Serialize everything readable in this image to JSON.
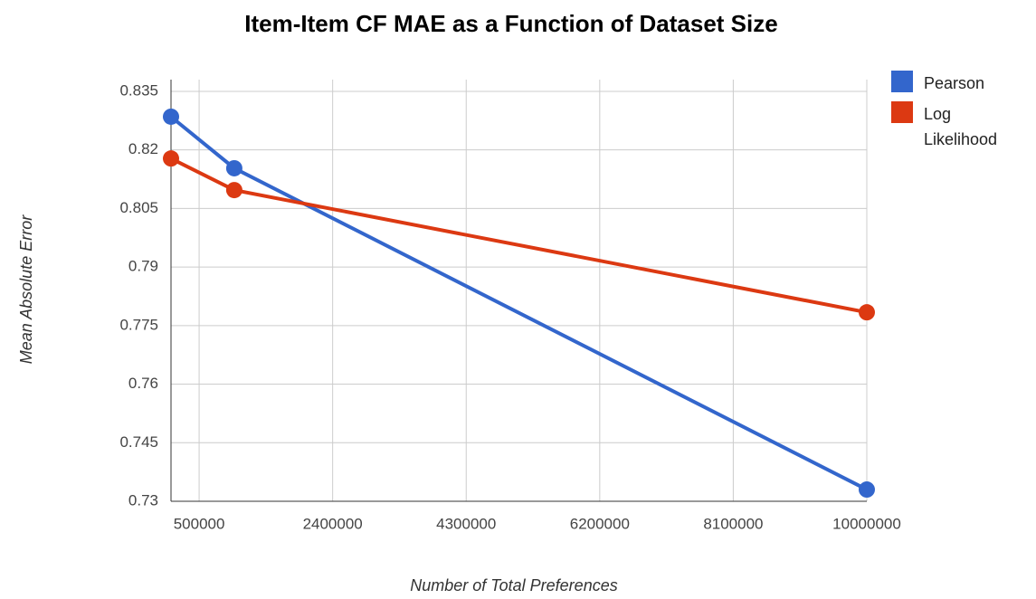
{
  "chart_data": {
    "type": "line",
    "title": "Item-Item CF MAE as a Function of Dataset Size",
    "x_label": "Number of Total Preferences",
    "y_label": "Mean Absolute Error",
    "x": [
      100000,
      1000000,
      10000000
    ],
    "series": [
      {
        "name": "Pearson",
        "color": "#3366cc",
        "values": [
          0.8285,
          0.8153,
          0.733
        ]
      },
      {
        "name": "Log Likelihood",
        "color": "#dc3912",
        "values": [
          0.8178,
          0.8097,
          0.7784
        ]
      }
    ],
    "xlim": [
      100000,
      10000000
    ],
    "xticks": [
      500000,
      2400000,
      4300000,
      6200000,
      8100000,
      10000000
    ],
    "ylim": [
      0.73,
      0.838
    ],
    "yticks": [
      0.73,
      0.745,
      0.76,
      0.775,
      0.79,
      0.805,
      0.82,
      0.835
    ],
    "grid": true,
    "legend": "right"
  }
}
